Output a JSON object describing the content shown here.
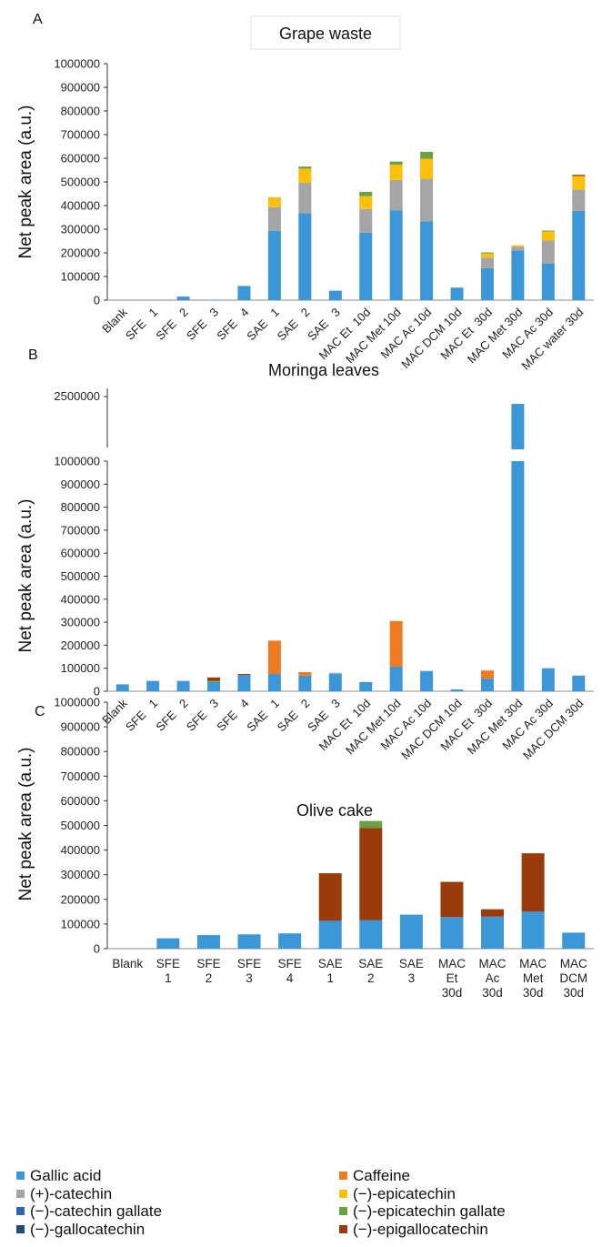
{
  "colors": {
    "gallic_acid": "#3c97d8",
    "caffeine": "#ef7a22",
    "catechin": "#a5a5a5",
    "epicatechin": "#fcbf0a",
    "catechin_gallate": "#2e66b4",
    "epicatechin_gallate": "#6aa241",
    "gallocatechin": "#1f4e79",
    "epigallocatechin": "#9a3b0b",
    "axis": "#333333"
  },
  "legend": [
    {
      "key": "gallic_acid",
      "label": "Gallic acid"
    },
    {
      "key": "caffeine",
      "label": "Caffeine"
    },
    {
      "key": "catechin",
      "label": "(+)-catechin"
    },
    {
      "key": "epicatechin",
      "label": "(−)-epicatechin"
    },
    {
      "key": "catechin_gallate",
      "label": "(−)-catechin gallate"
    },
    {
      "key": "epicatechin_gallate",
      "label": "(−)-epicatechin gallate"
    },
    {
      "key": "gallocatechin",
      "label": "(−)-gallocatechin"
    },
    {
      "key": "epigallocatechin",
      "label": "(−)-epigallocatechin"
    }
  ],
  "chart_data": [
    {
      "panel": "A",
      "type": "bar",
      "stacked": true,
      "title": "Grape waste",
      "ylabel": "Net peak area (a.u.)",
      "ylim": [
        0,
        1000000
      ],
      "yticks": [
        0,
        100000,
        200000,
        300000,
        400000,
        500000,
        600000,
        700000,
        800000,
        900000,
        1000000
      ],
      "categories": [
        "Blank",
        "SFE   1",
        "SFE   2",
        "SFE   3",
        "SFE   4",
        "SAE   1",
        "SAE   2",
        "SAE   3",
        "MAC Et  10d",
        "MAC Met 10d",
        "MAC Ac 10d",
        "MAC DCM 10d",
        "MAC Et  30d",
        "MAC Met 30d",
        "MAC Ac 30d",
        "MAC water 30d"
      ],
      "series": [
        {
          "key": "gallic_acid",
          "values": [
            0,
            0,
            15000,
            2000,
            60000,
            293000,
            368000,
            40000,
            285000,
            380000,
            333000,
            53000,
            135000,
            210000,
            155000,
            378000
          ]
        },
        {
          "key": "catechin",
          "values": [
            0,
            0,
            0,
            0,
            0,
            100000,
            128000,
            0,
            100000,
            128000,
            180000,
            0,
            45000,
            15000,
            97000,
            90000
          ]
        },
        {
          "key": "epicatechin",
          "values": [
            0,
            0,
            0,
            0,
            0,
            42000,
            60000,
            0,
            55000,
            65000,
            85000,
            0,
            18000,
            7000,
            38000,
            57000
          ]
        },
        {
          "key": "epicatechin_gallate",
          "values": [
            0,
            0,
            0,
            0,
            0,
            0,
            9000,
            0,
            18000,
            13000,
            29000,
            0,
            4000,
            0,
            4000,
            0
          ]
        },
        {
          "key": "epigallocatechin",
          "values": [
            0,
            0,
            0,
            0,
            0,
            0,
            0,
            0,
            0,
            0,
            0,
            0,
            0,
            0,
            0,
            5000
          ]
        }
      ]
    },
    {
      "panel": "B",
      "type": "bar",
      "stacked": true,
      "title": "Moringa leaves",
      "ylabel": "Net peak area (a.u.)",
      "ylim": [
        0,
        1000000
      ],
      "axis_break": {
        "above_top_label": "2500000"
      },
      "yticks": [
        0,
        100000,
        200000,
        300000,
        400000,
        500000,
        600000,
        700000,
        800000,
        900000,
        1000000
      ],
      "categories": [
        "Blank",
        "SFE   1",
        "SFE   2",
        "SFE   3",
        "SFE   4",
        "SAE   1",
        "SAE   2",
        "SAE   3",
        "MAC Et  10d",
        "MAC Met 10d",
        "MAC Ac 10d",
        "MAC DCM 10d",
        "MAC Et  30d",
        "MAC Met 30d",
        "MAC Ac 30d",
        "MAC DCM 30d"
      ],
      "series": [
        {
          "key": "gallic_acid",
          "values": [
            30000,
            45000,
            45000,
            40000,
            70000,
            75000,
            68000,
            75000,
            40000,
            107000,
            88000,
            8000,
            55000,
            2500000,
            100000,
            68000
          ]
        },
        {
          "key": "caffeine",
          "values": [
            0,
            0,
            0,
            0,
            0,
            145000,
            15000,
            0,
            0,
            198000,
            0,
            0,
            35000,
            0,
            0,
            0
          ]
        },
        {
          "key": "catechin",
          "values": [
            0,
            0,
            0,
            0,
            0,
            0,
            0,
            5000,
            0,
            0,
            0,
            0,
            0,
            0,
            0,
            0
          ]
        },
        {
          "key": "epicatechin_gallate",
          "values": [
            0,
            0,
            0,
            5000,
            0,
            0,
            0,
            0,
            0,
            0,
            0,
            0,
            0,
            0,
            0,
            0
          ]
        },
        {
          "key": "epigallocatechin",
          "values": [
            0,
            0,
            0,
            15000,
            5000,
            0,
            0,
            0,
            0,
            0,
            0,
            0,
            0,
            0,
            0,
            0
          ]
        }
      ]
    },
    {
      "panel": "C",
      "type": "bar",
      "stacked": true,
      "title": "Olive cake",
      "ylabel": "Net peak area (a.u.)",
      "ylim": [
        0,
        1000000
      ],
      "yticks": [
        0,
        100000,
        200000,
        300000,
        400000,
        500000,
        600000,
        700000,
        800000,
        900000,
        1000000
      ],
      "categories": [
        "Blank",
        "SFE 1",
        "SFE 2",
        "SFE 3",
        "SFE 4",
        "SAE 1",
        "SAE 2",
        "SAE 3",
        "MAC Et 30d",
        "MAC Ac 30d",
        "MAC Met 30d",
        "MAC DCM 30d"
      ],
      "series": [
        {
          "key": "gallic_acid",
          "values": [
            0,
            42000,
            55000,
            58000,
            62000,
            113000,
            115000,
            138000,
            128000,
            130000,
            150000,
            65000
          ]
        },
        {
          "key": "epigallocatechin",
          "values": [
            0,
            0,
            0,
            0,
            0,
            193000,
            375000,
            0,
            143000,
            30000,
            237000,
            0
          ]
        },
        {
          "key": "epicatechin_gallate",
          "values": [
            0,
            0,
            0,
            0,
            0,
            0,
            28000,
            0,
            0,
            0,
            0,
            0
          ]
        }
      ]
    }
  ]
}
